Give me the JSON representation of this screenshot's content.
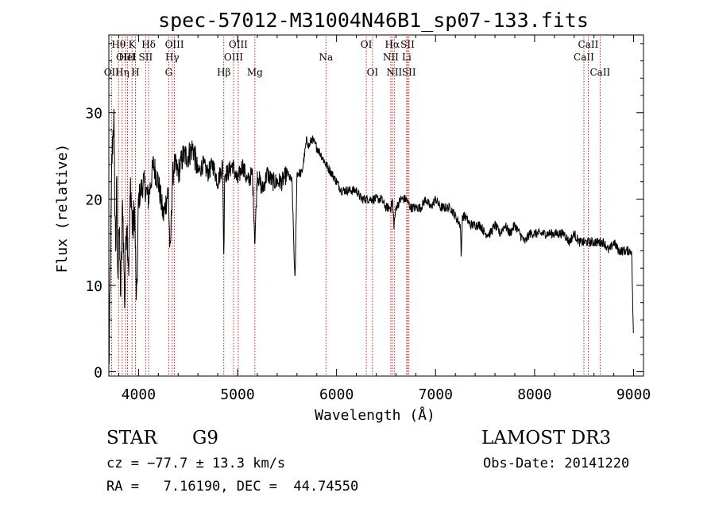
{
  "chart_data": {
    "type": "line",
    "title": "spec-57012-M31004N46B1_sp07-133.fits",
    "xlabel": "Wavelength (Å)",
    "ylabel": "Flux (relative)",
    "xlim": [
      3700,
      9100
    ],
    "ylim": [
      -0.5,
      39
    ],
    "x_ticks": [
      4000,
      5000,
      6000,
      7000,
      8000,
      9000
    ],
    "y_ticks": [
      0,
      10,
      20,
      30
    ],
    "grid": false,
    "line_color": "#000000",
    "marker_color": "#cc0000",
    "series": [
      {
        "name": "flux",
        "x": [
          3700,
          3710,
          3720,
          3730,
          3740,
          3750,
          3760,
          3770,
          3780,
          3790,
          3800,
          3820,
          3840,
          3860,
          3880,
          3900,
          3920,
          3940,
          3960,
          3980,
          4000,
          4050,
          4100,
          4150,
          4200,
          4250,
          4300,
          4320,
          4340,
          4360,
          4400,
          4450,
          4500,
          4550,
          4600,
          4650,
          4700,
          4750,
          4800,
          4850,
          4861,
          4870,
          4900,
          4950,
          5000,
          5050,
          5100,
          5150,
          5175,
          5200,
          5250,
          5300,
          5350,
          5400,
          5450,
          5500,
          5550,
          5580,
          5600,
          5650,
          5700,
          5720,
          5750,
          5800,
          5850,
          5893,
          5950,
          6000,
          6050,
          6100,
          6150,
          6200,
          6250,
          6300,
          6350,
          6400,
          6450,
          6500,
          6550,
          6563,
          6580,
          6600,
          6650,
          6700,
          6750,
          6800,
          6850,
          6900,
          6950,
          7000,
          7050,
          7100,
          7150,
          7200,
          7250,
          7260,
          7270,
          7300,
          7350,
          7400,
          7450,
          7500,
          7550,
          7600,
          7650,
          7700,
          7750,
          7800,
          7850,
          7900,
          7950,
          8000,
          8050,
          8100,
          8150,
          8200,
          8250,
          8300,
          8350,
          8400,
          8450,
          8498,
          8542,
          8600,
          8662,
          8700,
          8750,
          8800,
          8850,
          8900,
          8950,
          8980,
          9000
        ],
        "y": [
          0,
          7,
          15,
          24,
          27,
          30,
          20,
          14,
          22,
          10,
          18,
          9,
          20,
          8,
          18,
          12,
          22,
          16,
          19,
          7,
          20,
          22,
          20,
          24,
          22,
          18,
          21,
          13,
          22,
          24,
          23,
          25,
          25,
          26,
          23,
          24,
          23,
          24,
          22,
          24,
          13,
          23,
          23,
          24,
          22,
          24,
          22,
          23,
          15,
          23,
          21,
          23,
          22,
          22,
          22,
          23,
          22,
          10,
          23,
          23,
          27,
          26,
          27,
          26,
          25,
          24,
          23,
          22,
          21,
          21,
          21,
          21,
          20,
          20,
          20,
          20,
          20,
          19,
          19,
          20,
          17,
          19,
          20,
          20,
          19,
          19,
          19,
          20,
          19,
          20,
          19,
          19,
          19,
          18,
          17,
          13,
          18,
          18,
          17,
          17,
          17,
          16,
          16,
          17,
          16,
          17,
          16,
          17,
          16,
          15,
          16,
          16,
          16,
          16,
          16,
          16,
          16,
          16,
          15,
          16,
          15,
          15,
          15,
          15,
          15,
          15,
          14,
          15,
          14,
          14,
          14,
          14,
          3
        ]
      }
    ],
    "spectral_lines": [
      {
        "label": "OII",
        "x": 3727,
        "row": 2
      },
      {
        "label": "Hθ",
        "x": 3798,
        "row": 0
      },
      {
        "label": "OIII",
        "x": 3869,
        "row": 1
      },
      {
        "label": "HeI",
        "x": 3889,
        "row": 1
      },
      {
        "label": "Hη",
        "x": 3835,
        "row": 2
      },
      {
        "label": "K",
        "x": 3934,
        "row": 0
      },
      {
        "label": "H",
        "x": 3969,
        "row": 2
      },
      {
        "label": "SII",
        "x": 4072,
        "row": 1
      },
      {
        "label": "Hδ",
        "x": 4102,
        "row": 0
      },
      {
        "label": "Hγ",
        "x": 4340,
        "row": 1
      },
      {
        "label": "G",
        "x": 4305,
        "row": 2
      },
      {
        "label": "OIII",
        "x": 4363,
        "row": 0
      },
      {
        "label": "Hβ",
        "x": 4861,
        "row": 2
      },
      {
        "label": "OIII",
        "x": 4959,
        "row": 1
      },
      {
        "label": "OIII",
        "x": 5007,
        "row": 0
      },
      {
        "label": "Mg",
        "x": 5175,
        "row": 2
      },
      {
        "label": "Na",
        "x": 5893,
        "row": 1
      },
      {
        "label": "OI",
        "x": 6300,
        "row": 0
      },
      {
        "label": "OI",
        "x": 6363,
        "row": 2
      },
      {
        "label": "NII",
        "x": 6548,
        "row": 1
      },
      {
        "label": "Hα",
        "x": 6563,
        "row": 0
      },
      {
        "label": "NII",
        "x": 6583,
        "row": 2
      },
      {
        "label": "Li",
        "x": 6708,
        "row": 1
      },
      {
        "label": "SII",
        "x": 6717,
        "row": 0
      },
      {
        "label": "SII",
        "x": 6731,
        "row": 2
      },
      {
        "label": "CaII",
        "x": 8498,
        "row": 1
      },
      {
        "label": "CaII",
        "x": 8542,
        "row": 0
      },
      {
        "label": "CaII",
        "x": 8662,
        "row": 2
      }
    ]
  },
  "info": {
    "class": "STAR",
    "subclass": "G9",
    "survey": "LAMOST DR3",
    "cz": "cz = −77.7 ± 13.3 km/s",
    "obs_date": "Obs-Date: 20141220",
    "coords": "RA =   7.16190, DEC =  44.74550"
  }
}
